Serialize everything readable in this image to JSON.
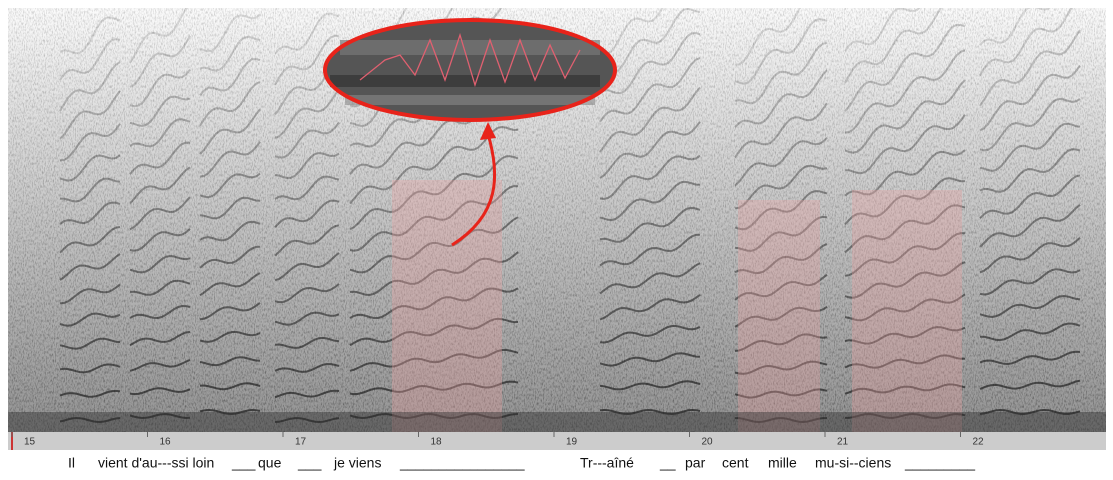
{
  "axis": {
    "ticks": [
      "15",
      "16",
      "17",
      "18",
      "19",
      "20",
      "21",
      "22"
    ]
  },
  "lyrics": [
    "Il",
    "vient d'au---ssi loin",
    "___",
    "que",
    "___",
    "je viens",
    "________________",
    "Tr---aîné",
    "__",
    "par",
    "cent",
    "mille",
    "mu-si--ciens",
    "_________"
  ]
}
